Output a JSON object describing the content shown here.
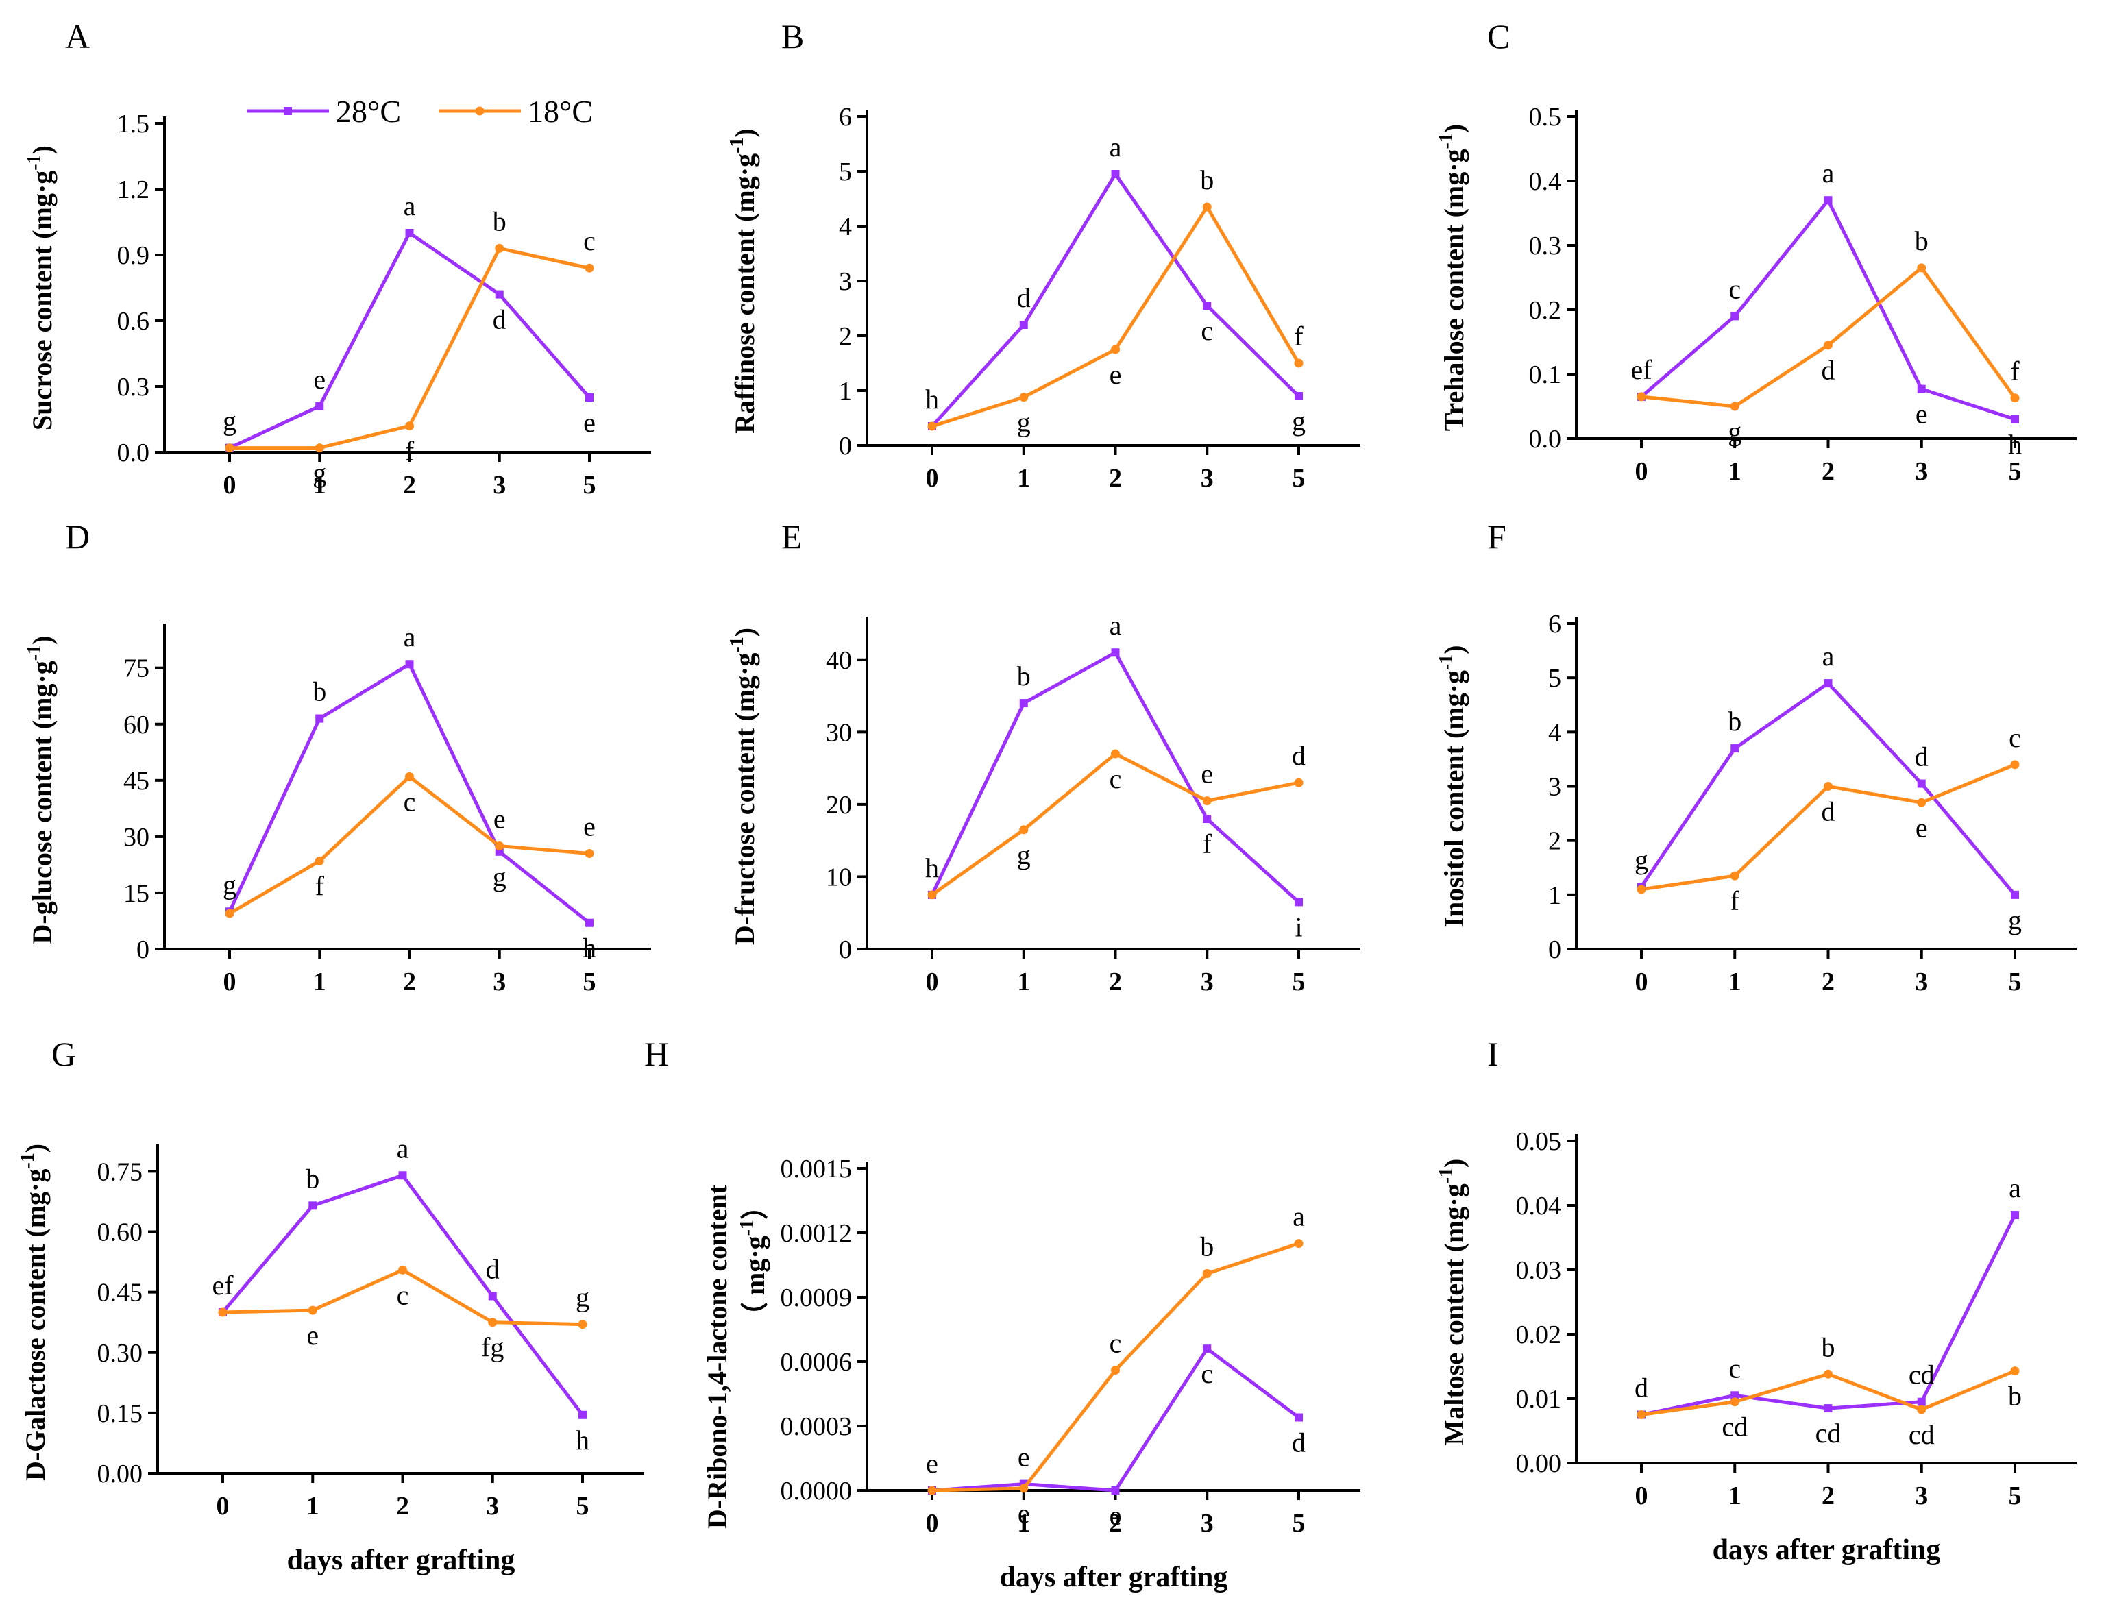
{
  "figure": {
    "xlabel": "days after grafting",
    "colors": {
      "28C": "#9b30ff",
      "18C": "#ff8c1a"
    },
    "legend": {
      "placement": "top-center",
      "entries": [
        "28°C",
        "18°C"
      ]
    }
  },
  "chart_data": [
    {
      "panel": "A",
      "type": "line",
      "ylabel": "Sucrose content (mg·g⁻¹)",
      "x": [
        "0",
        "1",
        "2",
        "3",
        "5"
      ],
      "ylim": [
        0,
        1.5
      ],
      "yticks": [
        "0.0",
        "0.3",
        "0.6",
        "0.9",
        "1.2",
        "1.5"
      ],
      "xlabel": "",
      "legend": true,
      "series": [
        {
          "name": "28°C",
          "values": [
            0.02,
            0.21,
            1.0,
            0.72,
            0.25
          ],
          "labels": [
            "g",
            "e",
            "a",
            "d",
            "e"
          ]
        },
        {
          "name": "18°C",
          "values": [
            0.02,
            0.02,
            0.12,
            0.93,
            0.84
          ],
          "labels": [
            "",
            "g",
            "f",
            "b",
            "c"
          ]
        }
      ]
    },
    {
      "panel": "B",
      "type": "line",
      "ylabel": "Raffinose content (mg·g⁻¹)",
      "x": [
        "0",
        "1",
        "2",
        "3",
        "5"
      ],
      "ylim": [
        0,
        6
      ],
      "yticks": [
        "0",
        "1",
        "2",
        "3",
        "4",
        "5",
        "6"
      ],
      "xlabel": "",
      "series": [
        {
          "name": "28°C",
          "values": [
            0.35,
            2.2,
            4.95,
            2.55,
            0.9
          ],
          "labels": [
            "h",
            "d",
            "a",
            "c",
            "g"
          ]
        },
        {
          "name": "18°C",
          "values": [
            0.35,
            0.88,
            1.75,
            4.35,
            1.5
          ],
          "labels": [
            "",
            "g",
            "e",
            "b",
            "f"
          ]
        }
      ]
    },
    {
      "panel": "C",
      "type": "line",
      "ylabel": "Trehalose content (mg·g⁻¹)",
      "x": [
        "0",
        "1",
        "2",
        "3",
        "5"
      ],
      "ylim": [
        0,
        0.5
      ],
      "yticks": [
        "0.0",
        "0.1",
        "0.2",
        "0.3",
        "0.4",
        "0.5"
      ],
      "xlabel": "",
      "series": [
        {
          "name": "28°C",
          "values": [
            0.065,
            0.19,
            0.37,
            0.077,
            0.03
          ],
          "labels": [
            "",
            "c",
            "a",
            "e",
            "h"
          ]
        },
        {
          "name": "18°C",
          "values": [
            0.065,
            0.05,
            0.145,
            0.265,
            0.063
          ],
          "labels": [
            "ef",
            "g",
            "d",
            "b",
            "f"
          ]
        }
      ]
    },
    {
      "panel": "D",
      "type": "line",
      "ylabel": "D-glucose content (mg·g⁻¹)",
      "x": [
        "0",
        "1",
        "2",
        "3",
        "5"
      ],
      "ylim": [
        0,
        85
      ],
      "yticks": [
        "0",
        "15",
        "30",
        "45",
        "60",
        "75"
      ],
      "xlabel": "",
      "series": [
        {
          "name": "28°C",
          "values": [
            10,
            61.5,
            76,
            26,
            7
          ],
          "labels": [
            "g",
            "b",
            "a",
            "g",
            "h"
          ]
        },
        {
          "name": "18°C",
          "values": [
            9.5,
            23.5,
            46,
            27.5,
            25.5
          ],
          "labels": [
            "",
            "f",
            "c",
            "e",
            "e"
          ]
        }
      ]
    },
    {
      "panel": "E",
      "type": "line",
      "ylabel": "D-fructose content (mg·g⁻¹)",
      "x": [
        "0",
        "1",
        "2",
        "3",
        "5"
      ],
      "ylim": [
        0,
        45
      ],
      "yticks": [
        "0",
        "10",
        "20",
        "30",
        "40"
      ],
      "xlabel": "",
      "series": [
        {
          "name": "28°C",
          "values": [
            7.5,
            34,
            41,
            18,
            6.5
          ],
          "labels": [
            "h",
            "b",
            "a",
            "f",
            "i"
          ]
        },
        {
          "name": "18°C",
          "values": [
            7.5,
            16.5,
            27,
            20.5,
            23
          ],
          "labels": [
            "",
            "g",
            "c",
            "e",
            "d"
          ]
        }
      ]
    },
    {
      "panel": "F",
      "type": "line",
      "ylabel": "Inositol content (mg·g⁻¹)",
      "x": [
        "0",
        "1",
        "2",
        "3",
        "5"
      ],
      "ylim": [
        0,
        6
      ],
      "yticks": [
        "0",
        "1",
        "2",
        "3",
        "4",
        "5",
        "6"
      ],
      "xlabel": "",
      "series": [
        {
          "name": "28°C",
          "values": [
            1.15,
            3.7,
            4.9,
            3.05,
            1.0
          ],
          "labels": [
            "g",
            "b",
            "a",
            "d",
            "g"
          ]
        },
        {
          "name": "18°C",
          "values": [
            1.1,
            1.35,
            3.0,
            2.7,
            3.4
          ],
          "labels": [
            "",
            "f",
            "d",
            "e",
            "c"
          ]
        }
      ]
    },
    {
      "panel": "G",
      "type": "line",
      "ylabel": "D-Galactose content (mg·g⁻¹)",
      "x": [
        "0",
        "1",
        "2",
        "3",
        "5"
      ],
      "ylim": [
        0,
        0.8
      ],
      "yticks": [
        "0.00",
        "0.15",
        "0.30",
        "0.45",
        "0.60",
        "0.75"
      ],
      "xlabel": "days after grafting",
      "series": [
        {
          "name": "28°C",
          "values": [
            0.4,
            0.665,
            0.74,
            0.44,
            0.145
          ],
          "labels": [
            "",
            "b",
            "a",
            "d",
            "h"
          ]
        },
        {
          "name": "18°C",
          "values": [
            0.4,
            0.405,
            0.505,
            0.375,
            0.37
          ],
          "labels": [
            "ef",
            "e",
            "c",
            "fg",
            "g"
          ]
        }
      ]
    },
    {
      "panel": "H",
      "type": "line",
      "ylabel": "D-Ribono-1,4-lactone content",
      "ylabel2": "（ mg·g⁻¹）",
      "x": [
        "0",
        "1",
        "2",
        "3",
        "5"
      ],
      "ylim": [
        0,
        0.0015
      ],
      "yticks": [
        "0.0000",
        "0.0003",
        "0.0006",
        "0.0009",
        "0.0012",
        "0.0015"
      ],
      "xlabel": "days after grafting",
      "series": [
        {
          "name": "28°C",
          "values": [
            0.0,
            3e-05,
            0.0,
            0.00066,
            0.00034
          ],
          "labels": [
            "e",
            "e",
            "e",
            "c",
            "d"
          ]
        },
        {
          "name": "18°C",
          "values": [
            0.0,
            1e-05,
            0.00056,
            0.00101,
            0.00115
          ],
          "labels": [
            "",
            "e",
            "c",
            "b",
            "a"
          ]
        }
      ]
    },
    {
      "panel": "I",
      "type": "line",
      "ylabel": "Maltose content (mg·g⁻¹)",
      "x": [
        "0",
        "1",
        "2",
        "3",
        "5"
      ],
      "ylim": [
        0,
        0.05
      ],
      "yticks": [
        "0.00",
        "0.01",
        "0.02",
        "0.03",
        "0.04",
        "0.05"
      ],
      "xlabel": "days after grafting",
      "series": [
        {
          "name": "28°C",
          "values": [
            0.0075,
            0.0105,
            0.0085,
            0.0095,
            0.0385
          ],
          "labels": [
            "d",
            "c",
            "cd",
            "cd",
            "a"
          ]
        },
        {
          "name": "18°C",
          "values": [
            0.0075,
            0.0095,
            0.0138,
            0.0083,
            0.0143
          ],
          "labels": [
            "",
            "cd",
            "b",
            "cd",
            "b"
          ]
        }
      ]
    }
  ]
}
